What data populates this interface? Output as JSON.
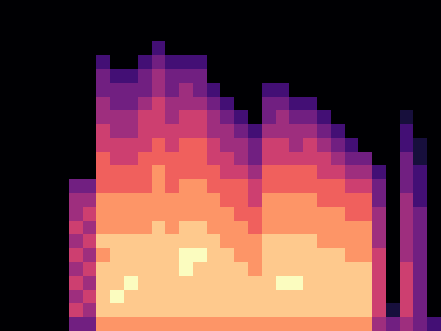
{
  "chart_data": {
    "type": "heatmap",
    "color": "magma",
    "tick_labels": false,
    "clim": [
      0,
      9
    ],
    "cells": [
      [
        0,
        0,
        0,
        0,
        0,
        0,
        0,
        0,
        0,
        0,
        0,
        0,
        0,
        0,
        0,
        0,
        0,
        0,
        0,
        0,
        0,
        0,
        0,
        0,
        0,
        0,
        0,
        0,
        0,
        0,
        0,
        0
      ],
      [
        0,
        0,
        0,
        0,
        0,
        0,
        0,
        0,
        0,
        0,
        0,
        0,
        0,
        0,
        0,
        0,
        0,
        0,
        0,
        0,
        0,
        0,
        0,
        0,
        0,
        0,
        0,
        0,
        0,
        0,
        0,
        0
      ],
      [
        0,
        0,
        0,
        0,
        0,
        0,
        0,
        0,
        0,
        0,
        0,
        0,
        0,
        0,
        0,
        0,
        0,
        0,
        0,
        0,
        0,
        0,
        0,
        0,
        0,
        0,
        0,
        0,
        0,
        0,
        0,
        0
      ],
      [
        0,
        0,
        0,
        0,
        0,
        0,
        0,
        0,
        0,
        0,
        0,
        2,
        0,
        0,
        0,
        0,
        0,
        0,
        0,
        0,
        0,
        0,
        0,
        0,
        0,
        0,
        0,
        0,
        0,
        0,
        0,
        0
      ],
      [
        0,
        0,
        0,
        0,
        0,
        0,
        0,
        2,
        0,
        0,
        2,
        3,
        2,
        2,
        2,
        0,
        0,
        0,
        0,
        0,
        0,
        0,
        0,
        0,
        0,
        0,
        0,
        0,
        0,
        0,
        0,
        0
      ],
      [
        0,
        0,
        0,
        0,
        0,
        0,
        0,
        3,
        2,
        2,
        3,
        4,
        3,
        3,
        3,
        0,
        0,
        0,
        0,
        0,
        0,
        0,
        0,
        0,
        0,
        0,
        0,
        0,
        0,
        0,
        0,
        0
      ],
      [
        0,
        0,
        0,
        0,
        0,
        0,
        0,
        3,
        3,
        3,
        3,
        4,
        3,
        4,
        3,
        2,
        0,
        0,
        0,
        2,
        2,
        0,
        0,
        0,
        0,
        0,
        0,
        0,
        0,
        0,
        0,
        0
      ],
      [
        0,
        0,
        0,
        0,
        0,
        0,
        0,
        4,
        3,
        3,
        4,
        5,
        4,
        4,
        4,
        3,
        2,
        0,
        0,
        3,
        3,
        2,
        2,
        0,
        0,
        0,
        0,
        0,
        0,
        0,
        0,
        0
      ],
      [
        0,
        0,
        0,
        0,
        0,
        0,
        0,
        4,
        4,
        4,
        5,
        5,
        4,
        5,
        5,
        4,
        3,
        2,
        0,
        3,
        4,
        3,
        3,
        2,
        0,
        0,
        0,
        0,
        0,
        1,
        0,
        0
      ],
      [
        0,
        0,
        0,
        0,
        0,
        0,
        0,
        5,
        4,
        4,
        5,
        5,
        5,
        5,
        5,
        4,
        4,
        3,
        2,
        4,
        4,
        4,
        4,
        3,
        2,
        0,
        0,
        0,
        0,
        2,
        0,
        0
      ],
      [
        0,
        0,
        0,
        0,
        0,
        0,
        0,
        5,
        5,
        5,
        5,
        6,
        5,
        6,
        6,
        5,
        4,
        4,
        3,
        5,
        5,
        4,
        5,
        4,
        3,
        2,
        0,
        0,
        0,
        2,
        1,
        0
      ],
      [
        0,
        0,
        0,
        0,
        0,
        0,
        0,
        6,
        5,
        5,
        6,
        6,
        6,
        6,
        6,
        5,
        5,
        4,
        3,
        5,
        5,
        5,
        5,
        5,
        4,
        3,
        3,
        0,
        0,
        3,
        1,
        0
      ],
      [
        0,
        0,
        0,
        0,
        0,
        0,
        0,
        6,
        6,
        6,
        6,
        7,
        6,
        6,
        6,
        6,
        5,
        5,
        4,
        6,
        6,
        6,
        6,
        5,
        5,
        4,
        4,
        2,
        0,
        3,
        2,
        0
      ],
      [
        0,
        0,
        0,
        0,
        0,
        3,
        3,
        6,
        6,
        6,
        6,
        7,
        6,
        7,
        7,
        6,
        6,
        6,
        5,
        6,
        6,
        6,
        6,
        6,
        6,
        5,
        5,
        3,
        0,
        3,
        2,
        0
      ],
      [
        0,
        0,
        0,
        0,
        0,
        4,
        4,
        7,
        7,
        7,
        7,
        7,
        7,
        7,
        7,
        7,
        6,
        6,
        5,
        7,
        7,
        7,
        7,
        6,
        6,
        6,
        6,
        3,
        0,
        4,
        2,
        0
      ],
      [
        0,
        0,
        0,
        0,
        0,
        4,
        5,
        7,
        7,
        7,
        7,
        7,
        7,
        7,
        7,
        7,
        7,
        6,
        6,
        7,
        7,
        7,
        7,
        7,
        7,
        6,
        6,
        4,
        0,
        4,
        3,
        0
      ],
      [
        0,
        0,
        0,
        0,
        0,
        5,
        4,
        7,
        7,
        7,
        7,
        8,
        7,
        8,
        8,
        7,
        7,
        7,
        6,
        7,
        7,
        7,
        7,
        7,
        7,
        7,
        7,
        4,
        0,
        4,
        3,
        0
      ],
      [
        0,
        0,
        0,
        0,
        0,
        4,
        5,
        8,
        8,
        8,
        8,
        8,
        8,
        8,
        8,
        8,
        7,
        7,
        7,
        8,
        8,
        8,
        8,
        7,
        7,
        7,
        7,
        4,
        0,
        4,
        3,
        0
      ],
      [
        0,
        0,
        0,
        0,
        0,
        5,
        4,
        7,
        8,
        8,
        8,
        8,
        8,
        9,
        9,
        8,
        8,
        7,
        7,
        8,
        8,
        8,
        8,
        8,
        8,
        7,
        7,
        5,
        0,
        4,
        3,
        0
      ],
      [
        0,
        0,
        0,
        0,
        0,
        4,
        5,
        8,
        8,
        8,
        8,
        8,
        8,
        9,
        8,
        8,
        8,
        8,
        7,
        8,
        8,
        8,
        8,
        8,
        8,
        8,
        8,
        5,
        0,
        5,
        3,
        0
      ],
      [
        0,
        0,
        0,
        0,
        0,
        5,
        4,
        8,
        8,
        9,
        8,
        8,
        8,
        8,
        8,
        8,
        8,
        8,
        8,
        8,
        9,
        9,
        8,
        8,
        8,
        8,
        8,
        5,
        0,
        5,
        3,
        0
      ],
      [
        0,
        0,
        0,
        0,
        0,
        4,
        5,
        8,
        9,
        8,
        8,
        8,
        8,
        8,
        8,
        8,
        8,
        8,
        8,
        8,
        8,
        8,
        8,
        8,
        8,
        8,
        8,
        5,
        0,
        5,
        3,
        0
      ],
      [
        0,
        0,
        0,
        0,
        0,
        5,
        4,
        8,
        8,
        8,
        8,
        8,
        8,
        8,
        8,
        8,
        8,
        8,
        8,
        8,
        8,
        8,
        8,
        8,
        8,
        8,
        8,
        5,
        1,
        5,
        3,
        0
      ],
      [
        0,
        0,
        0,
        0,
        0,
        3,
        3,
        7,
        7,
        7,
        7,
        7,
        7,
        7,
        7,
        7,
        7,
        7,
        7,
        7,
        7,
        7,
        7,
        7,
        7,
        7,
        7,
        4,
        3,
        4,
        3,
        2
      ]
    ]
  }
}
